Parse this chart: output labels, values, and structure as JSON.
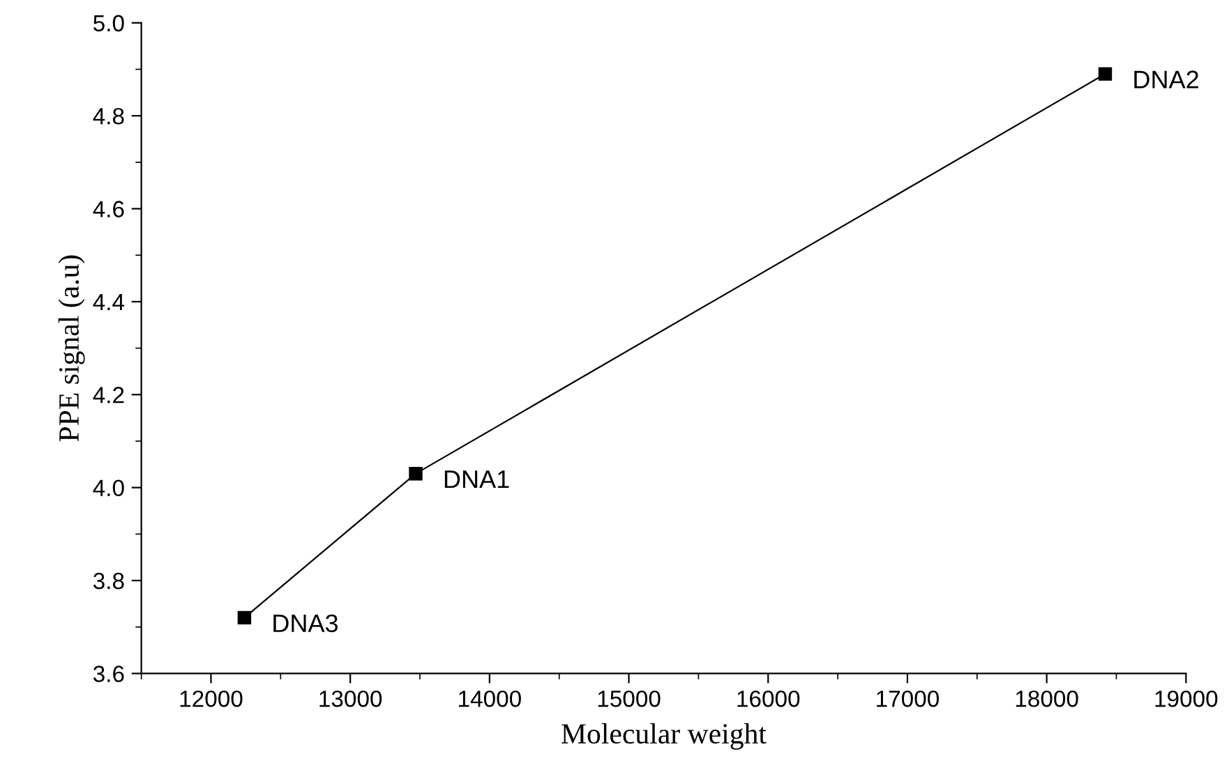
{
  "chart_data": {
    "type": "line",
    "xlabel": "Molecular weight",
    "ylabel": "PPE signal (a.u)",
    "x": [
      12240,
      13470,
      18420
    ],
    "series": [
      {
        "color": "#000000",
        "values": [
          3.72,
          4.03,
          4.89
        ]
      }
    ],
    "marker": "square",
    "line_style": "solid",
    "xlim": [
      11500,
      19000
    ],
    "xticks": [
      12000,
      13000,
      14000,
      15000,
      16000,
      17000,
      18000,
      19000
    ],
    "ylim": [
      3.6,
      5.0
    ],
    "yticks": [
      {
        "value": 3.6,
        "label": "3.6"
      },
      {
        "value": 3.8,
        "label": "3.8"
      },
      {
        "value": 4.0,
        "label": "4.0"
      },
      {
        "value": 4.2,
        "label": "4.2"
      },
      {
        "value": 4.4,
        "label": "4.4"
      },
      {
        "value": 4.6,
        "label": "4.6"
      },
      {
        "value": 4.8,
        "label": "4.8"
      },
      {
        "value": 5.0,
        "label": "5.0"
      }
    ],
    "grid": false,
    "legend": false,
    "annotations": [
      {
        "text": "DNA3",
        "x": 12240,
        "y": 3.72
      },
      {
        "text": "DNA1",
        "x": 13470,
        "y": 4.03
      },
      {
        "text": "DNA2",
        "x": 18420,
        "y": 4.89
      }
    ]
  }
}
